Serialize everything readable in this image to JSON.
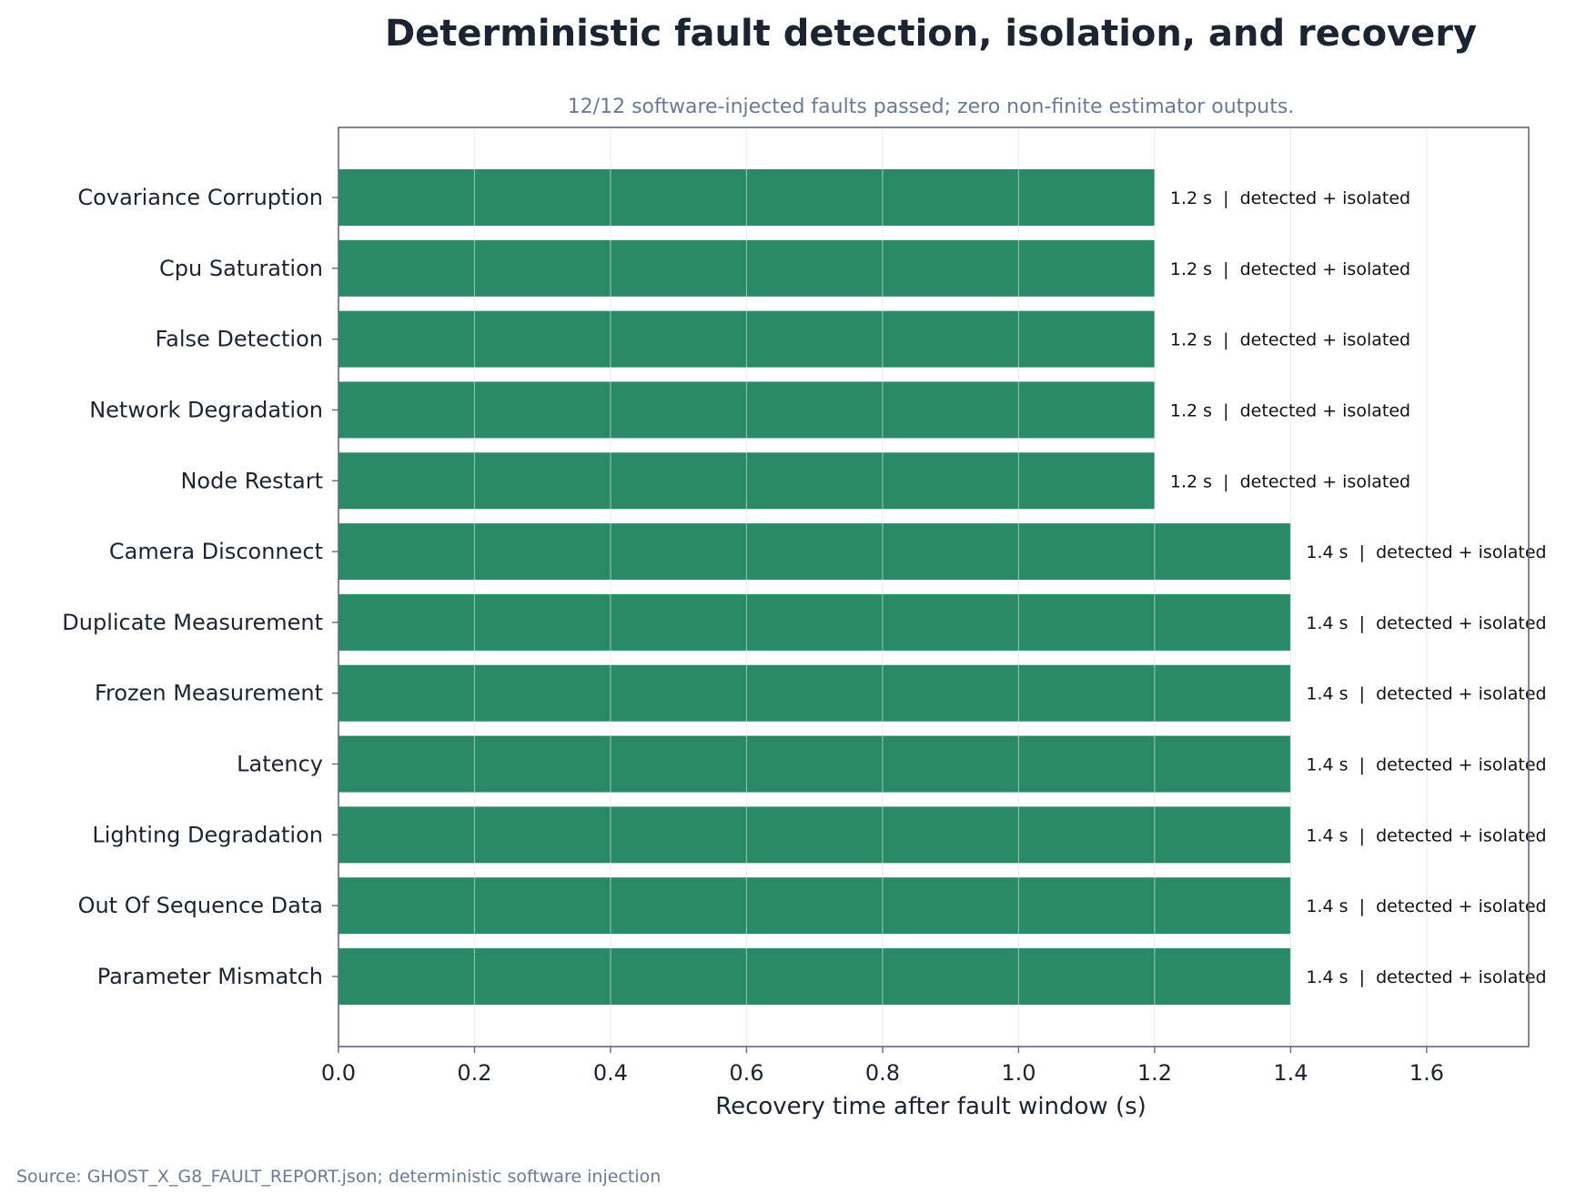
{
  "chart_data": {
    "type": "bar",
    "orientation": "horizontal",
    "title": "Deterministic fault detection, isolation, and recovery",
    "subtitle": "12/12 software-injected faults passed; zero non-finite estimator outputs.",
    "xlabel": "Recovery time after fault window (s)",
    "ylabel": "",
    "xlim": [
      0,
      1.75
    ],
    "xticks": [
      0.0,
      0.2,
      0.4,
      0.6,
      0.8,
      1.0,
      1.2,
      1.4,
      1.6
    ],
    "xtick_labels": [
      "0.0",
      "0.2",
      "0.4",
      "0.6",
      "0.8",
      "1.0",
      "1.2",
      "1.4",
      "1.6"
    ],
    "grid": "vertical",
    "categories": [
      "Covariance Corruption",
      "Cpu Saturation",
      "False Detection",
      "Network Degradation",
      "Node Restart",
      "Camera Disconnect",
      "Duplicate Measurement",
      "Frozen Measurement",
      "Latency",
      "Lighting Degradation",
      "Out Of Sequence Data",
      "Parameter Mismatch"
    ],
    "values": [
      1.2,
      1.2,
      1.2,
      1.2,
      1.2,
      1.4,
      1.4,
      1.4,
      1.4,
      1.4,
      1.4,
      1.4
    ],
    "data_labels": [
      "1.2 s  |  detected + isolated",
      "1.2 s  |  detected + isolated",
      "1.2 s  |  detected + isolated",
      "1.2 s  |  detected + isolated",
      "1.2 s  |  detected + isolated",
      "1.4 s  |  detected + isolated",
      "1.4 s  |  detected + isolated",
      "1.4 s  |  detected + isolated",
      "1.4 s  |  detected + isolated",
      "1.4 s  |  detected + isolated",
      "1.4 s  |  detected + isolated",
      "1.4 s  |  detected + isolated"
    ],
    "bar_color": "#2a8966",
    "source": "Source: GHOST_X_G8_FAULT_REPORT.json; deterministic software injection"
  }
}
